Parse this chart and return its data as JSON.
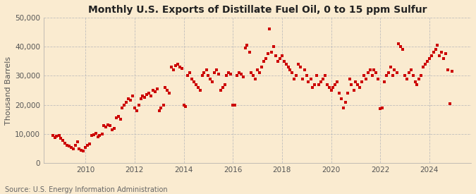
{
  "title": "Monthly U.S. Exports of Distillate Fuel Oil, 0 to 15 ppm Sulfur",
  "ylabel": "Thousand Barrels",
  "source": "Source: U.S. Energy Information Administration",
  "background_color": "#faebd0",
  "plot_background_color": "#faebd0",
  "marker_color": "#cc0000",
  "marker": "s",
  "marker_size": 3.5,
  "grid_color": "#bbbbbb",
  "ylim": [
    0,
    50000
  ],
  "yticks": [
    0,
    10000,
    20000,
    30000,
    40000,
    50000
  ],
  "ytick_labels": [
    "0",
    "10,000",
    "20,000",
    "30,000",
    "40,000",
    "50,000"
  ],
  "xlim_start": 2008.3,
  "xlim_end": 2025.7,
  "xticks": [
    2010,
    2012,
    2014,
    2016,
    2018,
    2020,
    2022,
    2024
  ],
  "title_fontsize": 10,
  "label_fontsize": 8,
  "tick_fontsize": 7.5,
  "source_fontsize": 7,
  "data": [
    [
      2008.67,
      9500
    ],
    [
      2008.75,
      8800
    ],
    [
      2008.83,
      9200
    ],
    [
      2008.92,
      9500
    ],
    [
      2009.0,
      8500
    ],
    [
      2009.08,
      7800
    ],
    [
      2009.17,
      6800
    ],
    [
      2009.25,
      6200
    ],
    [
      2009.33,
      5800
    ],
    [
      2009.42,
      5500
    ],
    [
      2009.5,
      5000
    ],
    [
      2009.58,
      6000
    ],
    [
      2009.67,
      7200
    ],
    [
      2009.75,
      4800
    ],
    [
      2009.83,
      4500
    ],
    [
      2009.92,
      4200
    ],
    [
      2010.0,
      5500
    ],
    [
      2010.08,
      6000
    ],
    [
      2010.17,
      6500
    ],
    [
      2010.25,
      9500
    ],
    [
      2010.33,
      9800
    ],
    [
      2010.42,
      10200
    ],
    [
      2010.5,
      9000
    ],
    [
      2010.58,
      9500
    ],
    [
      2010.67,
      10000
    ],
    [
      2010.75,
      13000
    ],
    [
      2010.83,
      12500
    ],
    [
      2010.92,
      13200
    ],
    [
      2011.0,
      12800
    ],
    [
      2011.08,
      11500
    ],
    [
      2011.17,
      12000
    ],
    [
      2011.25,
      15500
    ],
    [
      2011.33,
      16000
    ],
    [
      2011.42,
      15000
    ],
    [
      2011.5,
      19000
    ],
    [
      2011.58,
      20000
    ],
    [
      2011.67,
      21000
    ],
    [
      2011.75,
      22000
    ],
    [
      2011.83,
      21500
    ],
    [
      2011.92,
      23000
    ],
    [
      2012.0,
      19000
    ],
    [
      2012.08,
      18000
    ],
    [
      2012.17,
      20000
    ],
    [
      2012.25,
      22000
    ],
    [
      2012.33,
      23000
    ],
    [
      2012.42,
      22500
    ],
    [
      2012.5,
      23500
    ],
    [
      2012.58,
      24000
    ],
    [
      2012.67,
      23000
    ],
    [
      2012.75,
      25000
    ],
    [
      2012.83,
      24500
    ],
    [
      2012.92,
      25500
    ],
    [
      2013.0,
      18000
    ],
    [
      2013.08,
      19000
    ],
    [
      2013.17,
      20000
    ],
    [
      2013.25,
      26000
    ],
    [
      2013.33,
      25000
    ],
    [
      2013.42,
      24000
    ],
    [
      2013.5,
      33000
    ],
    [
      2013.58,
      32000
    ],
    [
      2013.67,
      33500
    ],
    [
      2013.75,
      34000
    ],
    [
      2013.83,
      33000
    ],
    [
      2013.92,
      32500
    ],
    [
      2014.0,
      20000
    ],
    [
      2014.08,
      19500
    ],
    [
      2014.17,
      30000
    ],
    [
      2014.25,
      31000
    ],
    [
      2014.33,
      29000
    ],
    [
      2014.42,
      28000
    ],
    [
      2014.5,
      27000
    ],
    [
      2014.58,
      26000
    ],
    [
      2014.67,
      25000
    ],
    [
      2014.75,
      30000
    ],
    [
      2014.83,
      31000
    ],
    [
      2014.92,
      32000
    ],
    [
      2015.0,
      30000
    ],
    [
      2015.08,
      29000
    ],
    [
      2015.17,
      28000
    ],
    [
      2015.25,
      31000
    ],
    [
      2015.33,
      32000
    ],
    [
      2015.42,
      30500
    ],
    [
      2015.5,
      25000
    ],
    [
      2015.58,
      26000
    ],
    [
      2015.67,
      27000
    ],
    [
      2015.75,
      30000
    ],
    [
      2015.83,
      31000
    ],
    [
      2015.92,
      30500
    ],
    [
      2016.0,
      19800
    ],
    [
      2016.08,
      20000
    ],
    [
      2016.17,
      30000
    ],
    [
      2016.25,
      31000
    ],
    [
      2016.33,
      30500
    ],
    [
      2016.42,
      29500
    ],
    [
      2016.5,
      39500
    ],
    [
      2016.58,
      40500
    ],
    [
      2016.67,
      38000
    ],
    [
      2016.75,
      31000
    ],
    [
      2016.83,
      30000
    ],
    [
      2016.92,
      29000
    ],
    [
      2017.0,
      32000
    ],
    [
      2017.08,
      31000
    ],
    [
      2017.17,
      33000
    ],
    [
      2017.25,
      35000
    ],
    [
      2017.33,
      36000
    ],
    [
      2017.42,
      37500
    ],
    [
      2017.5,
      46000
    ],
    [
      2017.58,
      38000
    ],
    [
      2017.67,
      40000
    ],
    [
      2017.75,
      37000
    ],
    [
      2017.83,
      35000
    ],
    [
      2017.92,
      36000
    ],
    [
      2018.0,
      37000
    ],
    [
      2018.08,
      35000
    ],
    [
      2018.17,
      34000
    ],
    [
      2018.25,
      33000
    ],
    [
      2018.33,
      32000
    ],
    [
      2018.42,
      31000
    ],
    [
      2018.5,
      29000
    ],
    [
      2018.58,
      30000
    ],
    [
      2018.67,
      34000
    ],
    [
      2018.75,
      33000
    ],
    [
      2018.83,
      29000
    ],
    [
      2018.92,
      32000
    ],
    [
      2019.0,
      30000
    ],
    [
      2019.08,
      28000
    ],
    [
      2019.17,
      29000
    ],
    [
      2019.25,
      26000
    ],
    [
      2019.33,
      27000
    ],
    [
      2019.42,
      30000
    ],
    [
      2019.5,
      27000
    ],
    [
      2019.58,
      28000
    ],
    [
      2019.67,
      29000
    ],
    [
      2019.75,
      30000
    ],
    [
      2019.83,
      27000
    ],
    [
      2019.92,
      26000
    ],
    [
      2020.0,
      25000
    ],
    [
      2020.08,
      26000
    ],
    [
      2020.17,
      27000
    ],
    [
      2020.25,
      28000
    ],
    [
      2020.33,
      24000
    ],
    [
      2020.42,
      22000
    ],
    [
      2020.5,
      19000
    ],
    [
      2020.58,
      21000
    ],
    [
      2020.67,
      24000
    ],
    [
      2020.75,
      29000
    ],
    [
      2020.83,
      27000
    ],
    [
      2020.92,
      25000
    ],
    [
      2021.0,
      28000
    ],
    [
      2021.08,
      27000
    ],
    [
      2021.17,
      26000
    ],
    [
      2021.25,
      28000
    ],
    [
      2021.33,
      30000
    ],
    [
      2021.42,
      29000
    ],
    [
      2021.5,
      31000
    ],
    [
      2021.58,
      32000
    ],
    [
      2021.67,
      30000
    ],
    [
      2021.75,
      32000
    ],
    [
      2021.83,
      31000
    ],
    [
      2021.92,
      29000
    ],
    [
      2022.0,
      18800
    ],
    [
      2022.08,
      19000
    ],
    [
      2022.17,
      28000
    ],
    [
      2022.25,
      30000
    ],
    [
      2022.33,
      31000
    ],
    [
      2022.42,
      33000
    ],
    [
      2022.5,
      30000
    ],
    [
      2022.58,
      32000
    ],
    [
      2022.67,
      31000
    ],
    [
      2022.75,
      41000
    ],
    [
      2022.83,
      40000
    ],
    [
      2022.92,
      39000
    ],
    [
      2023.0,
      30000
    ],
    [
      2023.08,
      29000
    ],
    [
      2023.17,
      31000
    ],
    [
      2023.25,
      32000
    ],
    [
      2023.33,
      30000
    ],
    [
      2023.42,
      28000
    ],
    [
      2023.5,
      27000
    ],
    [
      2023.58,
      29000
    ],
    [
      2023.67,
      30000
    ],
    [
      2023.75,
      33000
    ],
    [
      2023.83,
      34000
    ],
    [
      2023.92,
      35000
    ],
    [
      2024.0,
      36000
    ],
    [
      2024.08,
      37000
    ],
    [
      2024.17,
      38000
    ],
    [
      2024.25,
      39000
    ],
    [
      2024.33,
      40500
    ],
    [
      2024.42,
      37000
    ],
    [
      2024.5,
      38000
    ],
    [
      2024.58,
      36000
    ],
    [
      2024.67,
      37500
    ],
    [
      2024.75,
      32000
    ],
    [
      2024.83,
      20500
    ],
    [
      2024.92,
      31500
    ]
  ]
}
